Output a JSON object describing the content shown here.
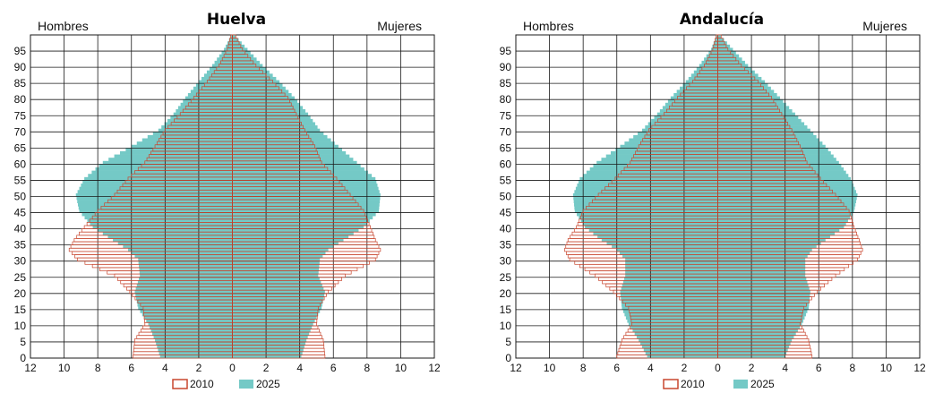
{
  "colors": {
    "series_2010": "#c8462e",
    "series_2025": "#74c9c6",
    "grid": "#1a1a1a"
  },
  "chart_data": [
    {
      "type": "population-pyramid",
      "title": "Huelva",
      "left_label": "Hombres",
      "right_label": "Mujeres",
      "xlim": [
        -12,
        12
      ],
      "ylim": [
        0,
        100
      ],
      "x_ticks": [
        12,
        10,
        8,
        6,
        4,
        2,
        0,
        2,
        4,
        6,
        8,
        10,
        12
      ],
      "y_ticks": [
        0,
        5,
        10,
        15,
        20,
        25,
        30,
        35,
        40,
        45,
        50,
        55,
        60,
        65,
        70,
        75,
        80,
        85,
        90,
        95
      ],
      "legend": [
        "2010",
        "2025"
      ],
      "age_anchors": [
        0,
        5,
        10,
        15,
        20,
        25,
        30,
        33,
        36,
        40,
        45,
        50,
        55,
        60,
        65,
        70,
        75,
        80,
        85,
        90,
        95,
        99
      ],
      "series": [
        {
          "name": "2010",
          "men": [
            5.9,
            5.8,
            5.2,
            5.3,
            6.1,
            7.0,
            9.2,
            9.7,
            9.4,
            8.8,
            8.0,
            7.0,
            6.2,
            5.2,
            4.6,
            4.0,
            3.1,
            2.3,
            1.5,
            0.8,
            0.3,
            0.1
          ],
          "women": [
            5.5,
            5.4,
            5.0,
            5.1,
            5.7,
            6.7,
            8.5,
            8.8,
            8.5,
            8.2,
            7.8,
            7.0,
            6.2,
            5.3,
            4.9,
            4.3,
            3.8,
            3.3,
            2.4,
            1.4,
            0.6,
            0.2
          ]
        },
        {
          "name": "2025",
          "men": [
            4.3,
            4.6,
            5.0,
            5.6,
            5.8,
            5.5,
            5.6,
            6.2,
            7.1,
            8.3,
            9.1,
            9.3,
            8.8,
            7.7,
            6.0,
            4.4,
            3.5,
            2.8,
            2.0,
            1.2,
            0.5,
            0.1
          ],
          "women": [
            4.1,
            4.4,
            4.8,
            5.3,
            5.5,
            5.1,
            5.2,
            5.7,
            6.6,
            7.8,
            8.7,
            8.8,
            8.5,
            7.4,
            6.3,
            5.2,
            4.5,
            3.7,
            2.8,
            1.8,
            0.9,
            0.2
          ]
        }
      ]
    },
    {
      "type": "population-pyramid",
      "title": "Andalucía",
      "left_label": "Hombres",
      "right_label": "Mujeres",
      "xlim": [
        -12,
        12
      ],
      "ylim": [
        0,
        100
      ],
      "x_ticks": [
        12,
        10,
        8,
        6,
        4,
        2,
        0,
        2,
        4,
        6,
        8,
        10,
        12
      ],
      "y_ticks": [
        0,
        5,
        10,
        15,
        20,
        25,
        30,
        35,
        40,
        45,
        50,
        55,
        60,
        65,
        70,
        75,
        80,
        85,
        90,
        95
      ],
      "legend": [
        "2010",
        "2025"
      ],
      "age_anchors": [
        0,
        5,
        10,
        15,
        20,
        25,
        30,
        33,
        36,
        40,
        45,
        50,
        55,
        60,
        65,
        70,
        75,
        80,
        85,
        90,
        95,
        99
      ],
      "series": [
        {
          "name": "2010",
          "men": [
            6.0,
            5.7,
            5.1,
            5.3,
            6.2,
            7.3,
            8.8,
            9.1,
            8.9,
            8.4,
            8.0,
            7.1,
            6.1,
            5.2,
            4.7,
            4.1,
            3.2,
            2.4,
            1.5,
            0.8,
            0.3,
            0.1
          ],
          "women": [
            5.6,
            5.4,
            4.9,
            5.1,
            5.9,
            7.0,
            8.3,
            8.6,
            8.4,
            8.1,
            7.8,
            7.0,
            6.1,
            5.3,
            4.9,
            4.4,
            3.8,
            3.2,
            2.4,
            1.4,
            0.6,
            0.2
          ]
        },
        {
          "name": "2025",
          "men": [
            4.2,
            4.7,
            5.3,
            5.7,
            5.8,
            5.5,
            5.5,
            6.0,
            6.9,
            7.9,
            8.5,
            8.6,
            8.2,
            7.2,
            5.8,
            4.5,
            3.6,
            2.8,
            1.9,
            1.1,
            0.4,
            0.1
          ],
          "women": [
            4.0,
            4.4,
            5.0,
            5.4,
            5.5,
            5.2,
            5.2,
            5.6,
            6.4,
            7.5,
            8.1,
            8.3,
            7.9,
            7.2,
            6.4,
            5.5,
            4.6,
            3.7,
            2.8,
            1.8,
            0.9,
            0.2
          ]
        }
      ]
    }
  ]
}
